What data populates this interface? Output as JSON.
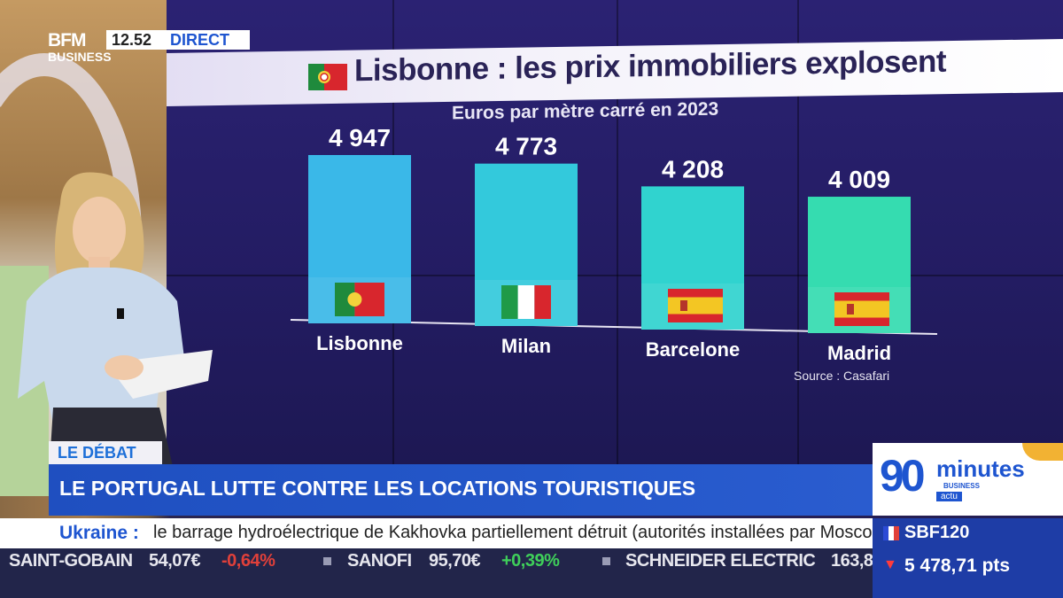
{
  "broadcast": {
    "channel_logo_top": "BFM",
    "channel_logo_bottom": "BUSINESS",
    "time": "12.52",
    "live": "DIRECT"
  },
  "chart_data": {
    "type": "bar",
    "title": "Lisbonne : les prix immobiliers explosent",
    "subtitle": "Euros par mètre carré en 2023",
    "categories": [
      "Lisbonne",
      "Milan",
      "Barcelone",
      "Madrid"
    ],
    "values": [
      4947,
      4773,
      4208,
      4009
    ],
    "value_labels": [
      "4 947",
      "4 773",
      "4 208",
      "4 009"
    ],
    "flags": [
      "portugal",
      "italy",
      "spain",
      "spain"
    ],
    "bar_colors": [
      "#3ab8e8",
      "#33c9dc",
      "#30d3cf",
      "#35dcb0"
    ],
    "ylim": [
      0,
      4947
    ],
    "source": "Source : Casafari"
  },
  "lower_third": {
    "tag": "LE DÉBAT",
    "headline": "LE PORTUGAL LUTTE CONTRE LES LOCATIONS TOURISTIQUES"
  },
  "program_logo": {
    "number": "90",
    "word": "minutes",
    "brand": "BUSINESS",
    "sub": "actu"
  },
  "news_ticker": {
    "topic": "Ukraine :",
    "text": "le barrage hydroélectrique de Kakhovka partiellement détruit (autorités installées par Moscou)."
  },
  "stock_ticker": [
    {
      "name": "SAINT-GOBAIN",
      "price": "54,07€",
      "change": "-0,64%",
      "direction": "down"
    },
    {
      "name": "SANOFI",
      "price": "95,70€",
      "change": "+0,39%",
      "direction": "up"
    },
    {
      "name": "SCHNEIDER ELECTRIC",
      "price": "163,8",
      "change": "",
      "direction": "none"
    }
  ],
  "index": {
    "name": "SBF120",
    "value": "5 478,71 pts",
    "direction": "down"
  }
}
